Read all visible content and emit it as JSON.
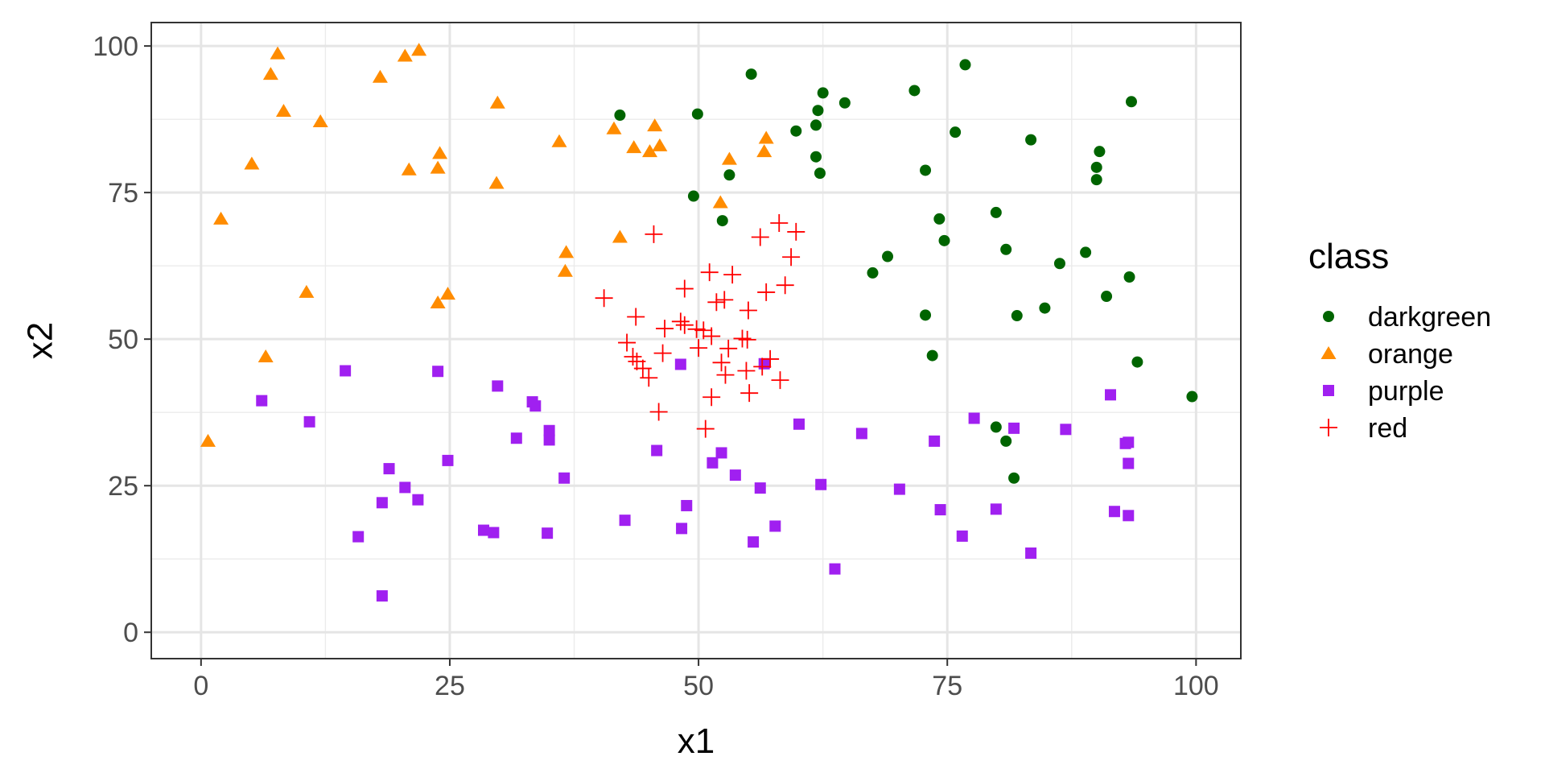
{
  "chart_data": {
    "type": "scatter",
    "title": "",
    "xlabel": "x1",
    "ylabel": "x2",
    "xlim": [
      -5,
      104.5
    ],
    "ylim": [
      -4.5,
      104
    ],
    "x_ticks": [
      0,
      25,
      50,
      75,
      100
    ],
    "y_ticks": [
      0,
      25,
      50,
      75,
      100
    ],
    "x_tick_labels": [
      "0",
      "25",
      "50",
      "75",
      "100"
    ],
    "y_tick_labels": [
      "0",
      "25",
      "50",
      "75",
      "100"
    ],
    "grid": true,
    "legend": {
      "title": "class",
      "position": "right"
    },
    "series": [
      {
        "name": "darkgreen",
        "color": "#006400",
        "shape": "circle",
        "points": [
          [
            42.1,
            88.2
          ],
          [
            49.9,
            88.4
          ],
          [
            55.3,
            95.2
          ],
          [
            59.8,
            85.5
          ],
          [
            61.8,
            86.5
          ],
          [
            62.0,
            89.0
          ],
          [
            62.5,
            92.0
          ],
          [
            64.7,
            90.3
          ],
          [
            71.7,
            92.4
          ],
          [
            76.8,
            96.8
          ],
          [
            75.8,
            85.3
          ],
          [
            83.4,
            84.0
          ],
          [
            90.3,
            82.0
          ],
          [
            90.0,
            79.3
          ],
          [
            90.0,
            77.2
          ],
          [
            93.5,
            90.5
          ],
          [
            72.8,
            78.8
          ],
          [
            61.8,
            81.1
          ],
          [
            62.2,
            78.3
          ],
          [
            53.1,
            78.0
          ],
          [
            49.5,
            74.4
          ],
          [
            52.4,
            70.2
          ],
          [
            74.2,
            70.5
          ],
          [
            74.7,
            66.8
          ],
          [
            79.9,
            71.6
          ],
          [
            80.9,
            65.3
          ],
          [
            86.3,
            62.9
          ],
          [
            88.9,
            64.8
          ],
          [
            93.3,
            60.6
          ],
          [
            69.0,
            64.1
          ],
          [
            67.5,
            61.3
          ],
          [
            72.8,
            54.1
          ],
          [
            82.0,
            54.0
          ],
          [
            84.8,
            55.3
          ],
          [
            91.0,
            57.3
          ],
          [
            73.5,
            47.2
          ],
          [
            94.1,
            46.1
          ],
          [
            99.6,
            40.2
          ],
          [
            79.9,
            35.0
          ],
          [
            80.9,
            32.6
          ],
          [
            81.7,
            26.3
          ]
        ]
      },
      {
        "name": "orange",
        "color": "#FF8C00",
        "shape": "triangle",
        "points": [
          [
            7.7,
            98.7
          ],
          [
            21.9,
            99.3
          ],
          [
            20.5,
            98.3
          ],
          [
            7.0,
            95.2
          ],
          [
            18.0,
            94.7
          ],
          [
            8.3,
            88.9
          ],
          [
            12.0,
            87.1
          ],
          [
            29.8,
            90.3
          ],
          [
            5.1,
            79.9
          ],
          [
            20.9,
            78.9
          ],
          [
            24.0,
            81.7
          ],
          [
            23.8,
            79.2
          ],
          [
            29.7,
            76.6
          ],
          [
            41.5,
            85.9
          ],
          [
            45.6,
            86.4
          ],
          [
            43.5,
            82.7
          ],
          [
            45.1,
            82.0
          ],
          [
            46.1,
            83.0
          ],
          [
            36.0,
            83.7
          ],
          [
            56.8,
            84.3
          ],
          [
            56.6,
            82.0
          ],
          [
            53.1,
            80.7
          ],
          [
            52.2,
            73.3
          ],
          [
            2.0,
            70.5
          ],
          [
            42.1,
            67.4
          ],
          [
            36.7,
            64.8
          ],
          [
            36.6,
            61.6
          ],
          [
            10.6,
            58.0
          ],
          [
            24.8,
            57.7
          ],
          [
            23.8,
            56.2
          ],
          [
            6.5,
            47.0
          ],
          [
            0.7,
            32.6
          ]
        ]
      },
      {
        "name": "purple",
        "color": "#A020F0",
        "shape": "square",
        "points": [
          [
            6.1,
            39.5
          ],
          [
            10.9,
            35.9
          ],
          [
            14.5,
            44.6
          ],
          [
            23.8,
            44.5
          ],
          [
            29.8,
            42.0
          ],
          [
            33.3,
            39.3
          ],
          [
            33.6,
            38.6
          ],
          [
            35.0,
            34.4
          ],
          [
            35.0,
            32.8
          ],
          [
            31.7,
            33.1
          ],
          [
            36.5,
            26.3
          ],
          [
            24.8,
            29.3
          ],
          [
            18.9,
            27.9
          ],
          [
            20.5,
            24.7
          ],
          [
            18.2,
            22.1
          ],
          [
            21.8,
            22.6
          ],
          [
            15.8,
            16.3
          ],
          [
            18.2,
            6.2
          ],
          [
            28.4,
            17.4
          ],
          [
            29.4,
            17.0
          ],
          [
            34.8,
            16.9
          ],
          [
            42.6,
            19.1
          ],
          [
            48.2,
            45.7
          ],
          [
            45.8,
            31.0
          ],
          [
            48.8,
            21.6
          ],
          [
            48.3,
            17.7
          ],
          [
            51.4,
            28.9
          ],
          [
            52.3,
            30.6
          ],
          [
            53.7,
            26.8
          ],
          [
            56.2,
            24.6
          ],
          [
            55.5,
            15.4
          ],
          [
            57.7,
            18.1
          ],
          [
            56.6,
            45.8
          ],
          [
            60.1,
            35.5
          ],
          [
            62.3,
            25.2
          ],
          [
            63.7,
            10.8
          ],
          [
            66.4,
            33.9
          ],
          [
            70.2,
            24.4
          ],
          [
            73.7,
            32.6
          ],
          [
            74.3,
            20.9
          ],
          [
            76.5,
            16.4
          ],
          [
            77.7,
            36.5
          ],
          [
            81.7,
            34.8
          ],
          [
            79.9,
            21.0
          ],
          [
            83.4,
            13.5
          ],
          [
            86.9,
            34.6
          ],
          [
            91.4,
            40.5
          ],
          [
            92.9,
            32.2
          ],
          [
            93.2,
            32.4
          ],
          [
            93.2,
            28.8
          ],
          [
            91.8,
            20.6
          ],
          [
            93.2,
            19.9
          ]
        ]
      },
      {
        "name": "red",
        "color": "#FF0000",
        "shape": "plus",
        "points": [
          [
            58.1,
            69.8
          ],
          [
            59.8,
            68.3
          ],
          [
            45.5,
            67.9
          ],
          [
            56.2,
            67.4
          ],
          [
            59.3,
            64.0
          ],
          [
            51.1,
            61.4
          ],
          [
            53.4,
            61.0
          ],
          [
            52.6,
            56.7
          ],
          [
            51.8,
            56.3
          ],
          [
            48.6,
            58.6
          ],
          [
            58.7,
            59.2
          ],
          [
            56.8,
            58.0
          ],
          [
            40.5,
            57.0
          ],
          [
            43.7,
            53.8
          ],
          [
            46.6,
            51.8
          ],
          [
            48.2,
            53.0
          ],
          [
            48.6,
            52.4
          ],
          [
            49.8,
            51.7
          ],
          [
            50.5,
            51.5
          ],
          [
            51.3,
            50.5
          ],
          [
            55.0,
            54.9
          ],
          [
            54.4,
            50.1
          ],
          [
            54.9,
            49.9
          ],
          [
            42.8,
            49.4
          ],
          [
            43.4,
            47.0
          ],
          [
            43.8,
            46.2
          ],
          [
            44.4,
            45.0
          ],
          [
            45.0,
            43.4
          ],
          [
            46.4,
            47.6
          ],
          [
            50.0,
            48.5
          ],
          [
            53.0,
            48.4
          ],
          [
            52.3,
            46.0
          ],
          [
            52.7,
            43.9
          ],
          [
            56.4,
            45.3
          ],
          [
            57.2,
            46.6
          ],
          [
            54.8,
            44.6
          ],
          [
            55.1,
            40.8
          ],
          [
            58.2,
            43.0
          ],
          [
            51.3,
            40.1
          ],
          [
            46.0,
            37.6
          ],
          [
            50.7,
            34.7
          ]
        ]
      }
    ]
  }
}
